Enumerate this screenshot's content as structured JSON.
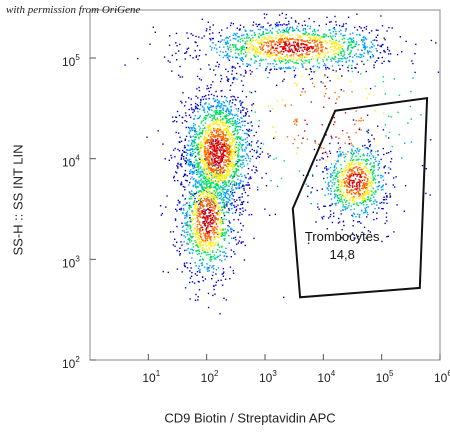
{
  "credit": "with permission from OriGene",
  "chart_data": {
    "type": "scatter",
    "xlabel": "CD9 Biotin / Streptavidin APC",
    "ylabel": "SS-H :: SS INT LIN",
    "x_scale": "log",
    "y_scale": "log",
    "xlim": [
      1,
      1000000
    ],
    "ylim": [
      100,
      300000
    ],
    "x_ticks": [
      {
        "base": "10",
        "exp": "1",
        "value": 10
      },
      {
        "base": "10",
        "exp": "2",
        "value": 100
      },
      {
        "base": "10",
        "exp": "3",
        "value": 1000
      },
      {
        "base": "10",
        "exp": "4",
        "value": 10000
      },
      {
        "base": "10",
        "exp": "5",
        "value": 100000
      },
      {
        "base": "10",
        "exp": "6",
        "value": 1000000
      }
    ],
    "y_ticks": [
      {
        "base": "10",
        "exp": "2",
        "value": 100
      },
      {
        "base": "10",
        "exp": "3",
        "value": 1000
      },
      {
        "base": "10",
        "exp": "4",
        "value": 10000
      },
      {
        "base": "10",
        "exp": "5",
        "value": 100000
      }
    ],
    "density_colormap": [
      "#0000cc",
      "#00a0ff",
      "#00e060",
      "#ffee00",
      "#ff6600",
      "#dd0000"
    ],
    "populations": [
      {
        "center": [
          150,
          12000
        ],
        "spread": [
          0.3,
          0.3
        ],
        "weight": 0.35
      },
      {
        "center": [
          100,
          2500
        ],
        "spread": [
          0.25,
          0.3
        ],
        "weight": 0.2
      },
      {
        "center": [
          3000,
          130000
        ],
        "spread": [
          0.8,
          0.12
        ],
        "weight": 0.25
      },
      {
        "center": [
          35000,
          6000
        ],
        "spread": [
          0.28,
          0.2
        ],
        "weight": 0.15
      },
      {
        "center": [
          10000,
          25000
        ],
        "spread": [
          1.0,
          0.5
        ],
        "weight": 0.05
      }
    ],
    "gate": {
      "name": "Trombocytes",
      "value": "14,8",
      "polygon": [
        [
          3000,
          3200
        ],
        [
          16000,
          30000
        ],
        [
          600000,
          40000
        ],
        [
          450000,
          520
        ],
        [
          4000,
          420
        ]
      ]
    }
  }
}
